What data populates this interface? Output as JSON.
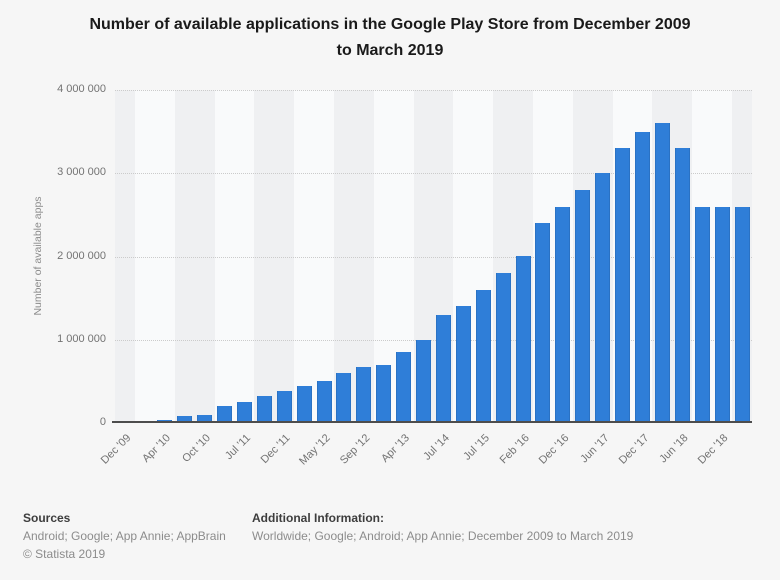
{
  "title": "Number of available applications in the Google Play Store from December 2009 to March 2019",
  "chart_data": {
    "type": "bar",
    "title": "Number of available applications in the Google Play Store from December 2009 to March 2019",
    "xlabel": "",
    "ylabel": "Number of available apps",
    "ylim": [
      0,
      4000000
    ],
    "yticks": [
      0,
      1000000,
      2000000,
      3000000,
      4000000
    ],
    "ytick_labels": [
      "0",
      "1 000 000",
      "2 000 000",
      "3 000 000",
      "4 000 000"
    ],
    "grid": "horizontal dotted gridlines, alternating vertical background bands",
    "legend": "none",
    "x_label_frequency": "label shown under every 2nd bar",
    "bar_color": "#2F7ED8",
    "band_color_dark": "#EFF0F2",
    "band_color_light": "#F9FAFB",
    "points": [
      {
        "label": "Dec '09",
        "value": 16000
      },
      {
        "label": "",
        "value": 30000
      },
      {
        "label": "Apr '10",
        "value": 38000
      },
      {
        "label": "",
        "value": 80000
      },
      {
        "label": "Oct '10",
        "value": 100000
      },
      {
        "label": "",
        "value": 200000
      },
      {
        "label": "Jul '11",
        "value": 250000
      },
      {
        "label": "",
        "value": 320000
      },
      {
        "label": "Dec '11",
        "value": 380000
      },
      {
        "label": "",
        "value": 450000
      },
      {
        "label": "May '12",
        "value": 500000
      },
      {
        "label": "",
        "value": 600000
      },
      {
        "label": "Sep '12",
        "value": 675000
      },
      {
        "label": "",
        "value": 700000
      },
      {
        "label": "Apr '13",
        "value": 850000
      },
      {
        "label": "",
        "value": 1000000
      },
      {
        "label": "Jul '14",
        "value": 1300000
      },
      {
        "label": "",
        "value": 1400000
      },
      {
        "label": "Jul '15",
        "value": 1600000
      },
      {
        "label": "",
        "value": 1800000
      },
      {
        "label": "Feb '16",
        "value": 2000000
      },
      {
        "label": "",
        "value": 2400000
      },
      {
        "label": "Dec '16",
        "value": 2600000
      },
      {
        "label": "",
        "value": 2800000
      },
      {
        "label": "Jun '17",
        "value": 3000000
      },
      {
        "label": "",
        "value": 3300000
      },
      {
        "label": "Dec '17",
        "value": 3500000
      },
      {
        "label": "",
        "value": 3600000
      },
      {
        "label": "Jun '18",
        "value": 3300000
      },
      {
        "label": "",
        "value": 2600000
      },
      {
        "label": "Dec '18",
        "value": 2600000
      },
      {
        "label": "",
        "value": 2600000
      }
    ]
  },
  "footer": {
    "sources_heading": "Sources",
    "sources_line": "Android; Google; App Annie; AppBrain",
    "copyright": "© Statista 2019",
    "additional_heading": "Additional Information:",
    "additional_line": "Worldwide; Google; Android; App Annie; December 2009 to March 2019"
  }
}
